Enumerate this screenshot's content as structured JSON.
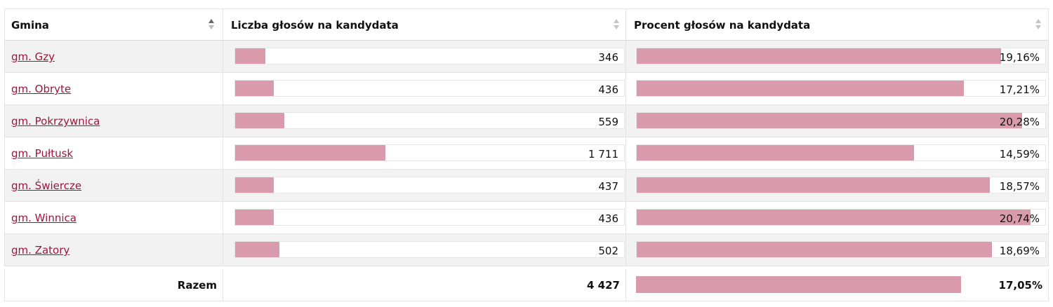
{
  "header": {
    "col1": "Gmina",
    "col2": "Liczba głosów na kandydata",
    "col3": "Procent głosów na kandydata"
  },
  "rows": [
    {
      "gmina": "gm. Gzy",
      "votes": "346",
      "percent": "19,16%",
      "votes_value": 346,
      "percent_value": 19.16
    },
    {
      "gmina": "gm. Obryte",
      "votes": "436",
      "percent": "17,21%",
      "votes_value": 436,
      "percent_value": 17.21
    },
    {
      "gmina": "gm. Pokrzywnica",
      "votes": "559",
      "percent": "20,28%",
      "votes_value": 559,
      "percent_value": 20.28
    },
    {
      "gmina": "gm. Pułtusk",
      "votes": "1 711",
      "percent": "14,59%",
      "votes_value": 1711,
      "percent_value": 14.59
    },
    {
      "gmina": "gm. Świercze",
      "votes": "437",
      "percent": "18,57%",
      "votes_value": 437,
      "percent_value": 18.57
    },
    {
      "gmina": "gm. Winnica",
      "votes": "436",
      "percent": "20,74%",
      "votes_value": 436,
      "percent_value": 20.74
    },
    {
      "gmina": "gm. Zatory",
      "votes": "502",
      "percent": "18,69%",
      "votes_value": 502,
      "percent_value": 18.69
    }
  ],
  "total": {
    "label": "Razem",
    "votes": "4 427",
    "percent": "17,05%",
    "percent_value": 17.05
  },
  "colors": {
    "bar": "#d99bab",
    "link": "#a0143c",
    "alt_row": "#f2f2f2"
  }
}
